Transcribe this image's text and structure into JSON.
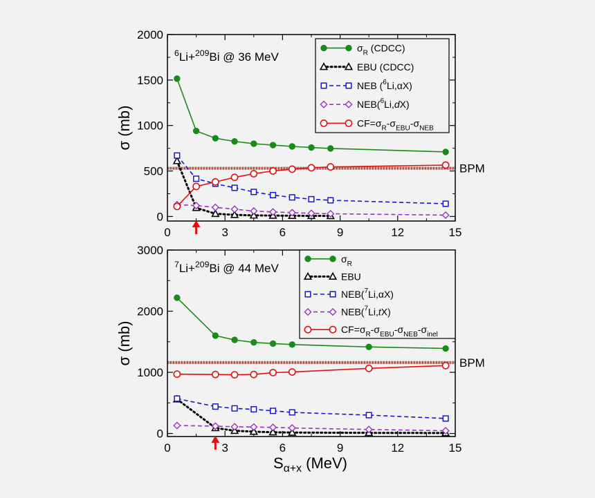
{
  "chart_data": [
    {
      "type": "line",
      "title": "⁶Li+²⁰⁹Bi @ 36 MeV",
      "title_parts": [
        "6",
        "Li+",
        "209",
        "Bi @ 36 MeV"
      ],
      "xlabel": "",
      "ylabel": "σ (mb)",
      "xlim": [
        0,
        15
      ],
      "ylim": [
        -50,
        2000
      ],
      "xticks": [
        0,
        3,
        6,
        9,
        12,
        15
      ],
      "yticks": [
        0,
        500,
        1000,
        1500,
        2000
      ],
      "legend_position": "top-right",
      "reference_line": {
        "label": "BPM",
        "y": 530
      },
      "arrow_marker_x": 1.5,
      "series": [
        {
          "name": "σR (CDCC)",
          "legend_parts": [
            "σ",
            "R",
            " (CDCC)"
          ],
          "color": "#1a8a1a",
          "marker": "filled-circle",
          "dash": "solid",
          "x": [
            0.5,
            1.5,
            2.5,
            3.5,
            4.5,
            5.5,
            6.5,
            7.5,
            8.5,
            14.5
          ],
          "y": [
            1515,
            940,
            860,
            825,
            800,
            785,
            770,
            758,
            748,
            710
          ]
        },
        {
          "name": "EBU (CDCC)",
          "legend_parts": [
            "EBU (CDCC)"
          ],
          "color": "#000000",
          "marker": "open-triangle",
          "dash": "dotted",
          "x": [
            0.5,
            1.5,
            2.5,
            3.5,
            4.5,
            5.5,
            6.5,
            7.5,
            8.5
          ],
          "y": [
            610,
            95,
            30,
            18,
            12,
            10,
            8,
            7,
            6
          ]
        },
        {
          "name": "NEB (6Li,αX)",
          "legend_parts": [
            "NEB (",
            "6",
            "Li,αX)"
          ],
          "color": "#1515d0",
          "marker": "open-square",
          "dash": "dashed",
          "x": [
            0.5,
            1.5,
            2.5,
            3.5,
            4.5,
            5.5,
            6.5,
            7.5,
            8.5,
            14.5
          ],
          "y": [
            670,
            415,
            360,
            315,
            270,
            235,
            210,
            190,
            178,
            140
          ]
        },
        {
          "name": "NEB(6Li,dX)",
          "legend_parts": [
            "NEB(",
            "6",
            "Li,",
            "d",
            "X)"
          ],
          "color": "#9a2fc8",
          "marker": "open-diamond",
          "dash": "dashed",
          "x": [
            0.5,
            1.5,
            2.5,
            3.5,
            4.5,
            5.5,
            6.5,
            7.5,
            8.5,
            14.5
          ],
          "y": [
            130,
            120,
            100,
            80,
            60,
            50,
            42,
            35,
            30,
            15
          ]
        },
        {
          "name": "CF=σR-σEBU-σNEB",
          "legend_parts": [
            "CF=σ",
            "R",
            "-σ",
            "EBU",
            "-σ",
            "NEB"
          ],
          "color": "#e01010",
          "marker": "open-circle",
          "dash": "solid",
          "x": [
            0.5,
            1.5,
            2.5,
            3.5,
            4.5,
            5.5,
            6.5,
            7.5,
            8.5,
            14.5
          ],
          "y": [
            110,
            330,
            380,
            430,
            470,
            500,
            520,
            535,
            545,
            565
          ]
        }
      ]
    },
    {
      "type": "line",
      "title": "⁷Li+²⁰⁹Bi @ 44 MeV",
      "title_parts": [
        "7",
        "Li+",
        "209",
        "Bi @ 44 MeV"
      ],
      "xlabel": "Sα+x (MeV)",
      "xlabel_parts": [
        "S",
        "α+x",
        " (MeV)"
      ],
      "ylabel": "σ (mb)",
      "xlim": [
        0,
        15
      ],
      "ylim": [
        -50,
        3000
      ],
      "xticks": [
        0,
        3,
        6,
        9,
        12,
        15
      ],
      "yticks": [
        0,
        1000,
        2000,
        3000
      ],
      "legend_position": "top-right",
      "reference_line": {
        "label": "BPM",
        "y": 1160
      },
      "arrow_marker_x": 2.5,
      "series": [
        {
          "name": "σR",
          "legend_parts": [
            "σ",
            "R",
            ""
          ],
          "color": "#1a8a1a",
          "marker": "filled-circle",
          "dash": "solid",
          "x": [
            0.5,
            2.5,
            3.5,
            4.5,
            5.5,
            6.5,
            10.5,
            14.5
          ],
          "y": [
            2220,
            1600,
            1530,
            1490,
            1470,
            1455,
            1415,
            1390
          ]
        },
        {
          "name": "EBU",
          "legend_parts": [
            "EBU"
          ],
          "color": "#000000",
          "marker": "open-triangle",
          "dash": "dotted",
          "x": [
            0.5,
            2.5,
            3.5,
            4.5,
            5.5,
            6.5,
            10.5,
            14.5
          ],
          "y": [
            560,
            90,
            45,
            30,
            20,
            15,
            10,
            8
          ]
        },
        {
          "name": "NEB(7Li,αX)",
          "legend_parts": [
            "NEB(",
            "7",
            "Li,αX)"
          ],
          "color": "#1515d0",
          "marker": "open-square",
          "dash": "dashed",
          "x": [
            0.5,
            2.5,
            3.5,
            4.5,
            5.5,
            6.5,
            10.5,
            14.5
          ],
          "y": [
            570,
            440,
            410,
            395,
            370,
            345,
            300,
            245
          ]
        },
        {
          "name": "NEB(7Li,tX)",
          "legend_parts": [
            "NEB(",
            "7",
            "Li,",
            "t",
            "X)"
          ],
          "color": "#9a2fc8",
          "marker": "open-diamond",
          "dash": "dashed",
          "x": [
            0.5,
            2.5,
            3.5,
            4.5,
            5.5,
            6.5,
            10.5,
            14.5
          ],
          "y": [
            130,
            120,
            110,
            105,
            100,
            90,
            65,
            45
          ]
        },
        {
          "name": "CF=σR-σEBU-σNEB-σinel",
          "legend_parts": [
            "CF=σ",
            "R",
            "-σ",
            "EBU",
            "-σ",
            "NEB",
            "-σ",
            "inel"
          ],
          "color": "#e01010",
          "marker": "open-circle",
          "dash": "solid",
          "x": [
            0.5,
            2.5,
            3.5,
            4.5,
            5.5,
            6.5,
            10.5,
            14.5
          ],
          "y": [
            970,
            965,
            960,
            965,
            995,
            1005,
            1065,
            1110
          ]
        }
      ]
    }
  ]
}
